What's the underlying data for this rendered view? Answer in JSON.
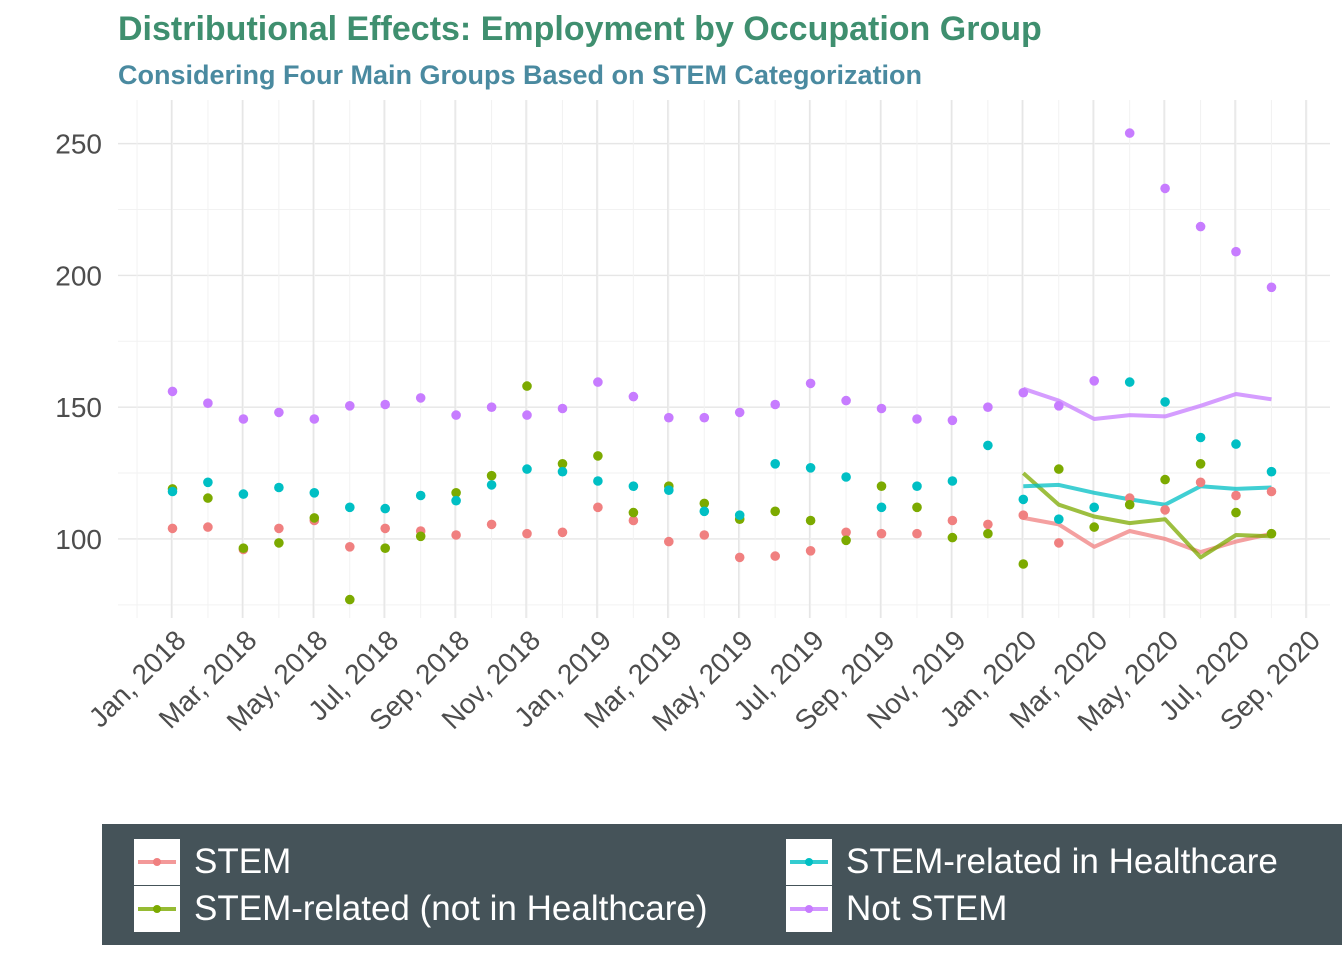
{
  "title": "Distributional Effects: Employment by Occupation Group",
  "subtitle": "Considering Four Main Groups Based on STEM Categorization",
  "colors": {
    "stem": "#f08080",
    "stem_related_not_healthcare": "#7caa00",
    "stem_related_healthcare": "#00bfc4",
    "not_stem": "#c77cff",
    "title": "#3f8f6f",
    "subtitle": "#4a8aa0",
    "legend_background": "#455359"
  },
  "legend": {
    "placement": "bottom",
    "items": [
      {
        "label": "STEM",
        "color": "#f08080"
      },
      {
        "label": "STEM-related (not in Healthcare)",
        "color": "#7caa00"
      },
      {
        "label": "STEM-related in Healthcare",
        "color": "#00bfc4"
      },
      {
        "label": "Not STEM",
        "color": "#c77cff"
      }
    ]
  },
  "chart_data": {
    "type": "scatter",
    "grid": true,
    "ylim": [
      70,
      262
    ],
    "yticks": [
      100,
      150,
      200,
      250
    ],
    "xticks": [
      "Jan, 2018",
      "Mar, 2018",
      "May, 2018",
      "Jul, 2018",
      "Sep, 2018",
      "Nov, 2018",
      "Jan, 2019",
      "Mar, 2019",
      "May, 2019",
      "Jul, 2019",
      "Sep, 2019",
      "Nov, 2019",
      "Jan, 2020",
      "Mar, 2020",
      "May, 2020",
      "Jul, 2020",
      "Sep, 2020"
    ],
    "x": [
      "Jan 2018",
      "Feb 2018",
      "Mar 2018",
      "Apr 2018",
      "May 2018",
      "Jun 2018",
      "Jul 2018",
      "Aug 2018",
      "Sep 2018",
      "Oct 2018",
      "Nov 2018",
      "Dec 2018",
      "Jan 2019",
      "Feb 2019",
      "Mar 2019",
      "Apr 2019",
      "May 2019",
      "Jun 2019",
      "Jul 2019",
      "Aug 2019",
      "Sep 2019",
      "Oct 2019",
      "Nov 2019",
      "Dec 2019",
      "Jan 2020",
      "Feb 2020",
      "Mar 2020",
      "Apr 2020",
      "May 2020",
      "Jun 2020",
      "Jul 2020",
      "Aug 2020"
    ],
    "series": [
      {
        "name": "STEM",
        "color": "#f08080",
        "points": [
          104,
          104.5,
          96,
          104,
          107,
          97,
          104,
          103,
          101.5,
          105.5,
          102,
          102.5,
          112,
          107,
          99,
          101.5,
          93,
          93.5,
          95.5,
          102.5,
          102,
          102,
          107,
          105.5,
          109,
          98.5,
          null,
          115.5,
          111,
          121.5,
          116.5,
          118
        ],
        "trend": [
          108,
          105.5,
          97,
          103,
          100,
          95,
          99,
          102
        ]
      },
      {
        "name": "STEM-related (not in Healthcare)",
        "color": "#7caa00",
        "points": [
          119,
          115.5,
          96.5,
          98.5,
          108,
          77,
          96.5,
          101,
          117.5,
          124,
          158,
          128.5,
          131.5,
          110,
          120,
          113.5,
          107.5,
          110.5,
          107,
          99.5,
          120,
          112,
          100.5,
          102,
          90.5,
          126.5,
          104.5,
          113,
          122.5,
          128.5,
          110,
          102
        ],
        "trend": [
          125,
          113,
          108.5,
          106,
          107.5,
          93,
          101.5,
          101
        ]
      },
      {
        "name": "STEM-related in Healthcare",
        "color": "#00bfc4",
        "points": [
          118,
          121.5,
          117,
          119.5,
          117.5,
          112,
          111.5,
          116.5,
          114.5,
          120.5,
          126.5,
          125.5,
          122,
          120,
          118.5,
          110.5,
          109,
          128.5,
          127,
          123.5,
          112,
          120,
          122,
          135.5,
          115,
          107.5,
          112,
          159.5,
          152,
          138.5,
          136,
          125.5
        ],
        "trend": [
          120,
          120.5,
          117.5,
          115,
          113,
          120,
          119,
          119.5
        ]
      },
      {
        "name": "Not STEM",
        "color": "#c77cff",
        "points": [
          156,
          151.5,
          145.5,
          148,
          145.5,
          150.5,
          151,
          153.5,
          147,
          150,
          147,
          149.5,
          159.5,
          154,
          146,
          146,
          148,
          151,
          159,
          152.5,
          149.5,
          145.5,
          145,
          150,
          155.5,
          150.5,
          160,
          254,
          233,
          218.5,
          209,
          195.5
        ],
        "trend": [
          157,
          152.5,
          145.5,
          147,
          146.5,
          150.5,
          155,
          153
        ]
      }
    ]
  }
}
